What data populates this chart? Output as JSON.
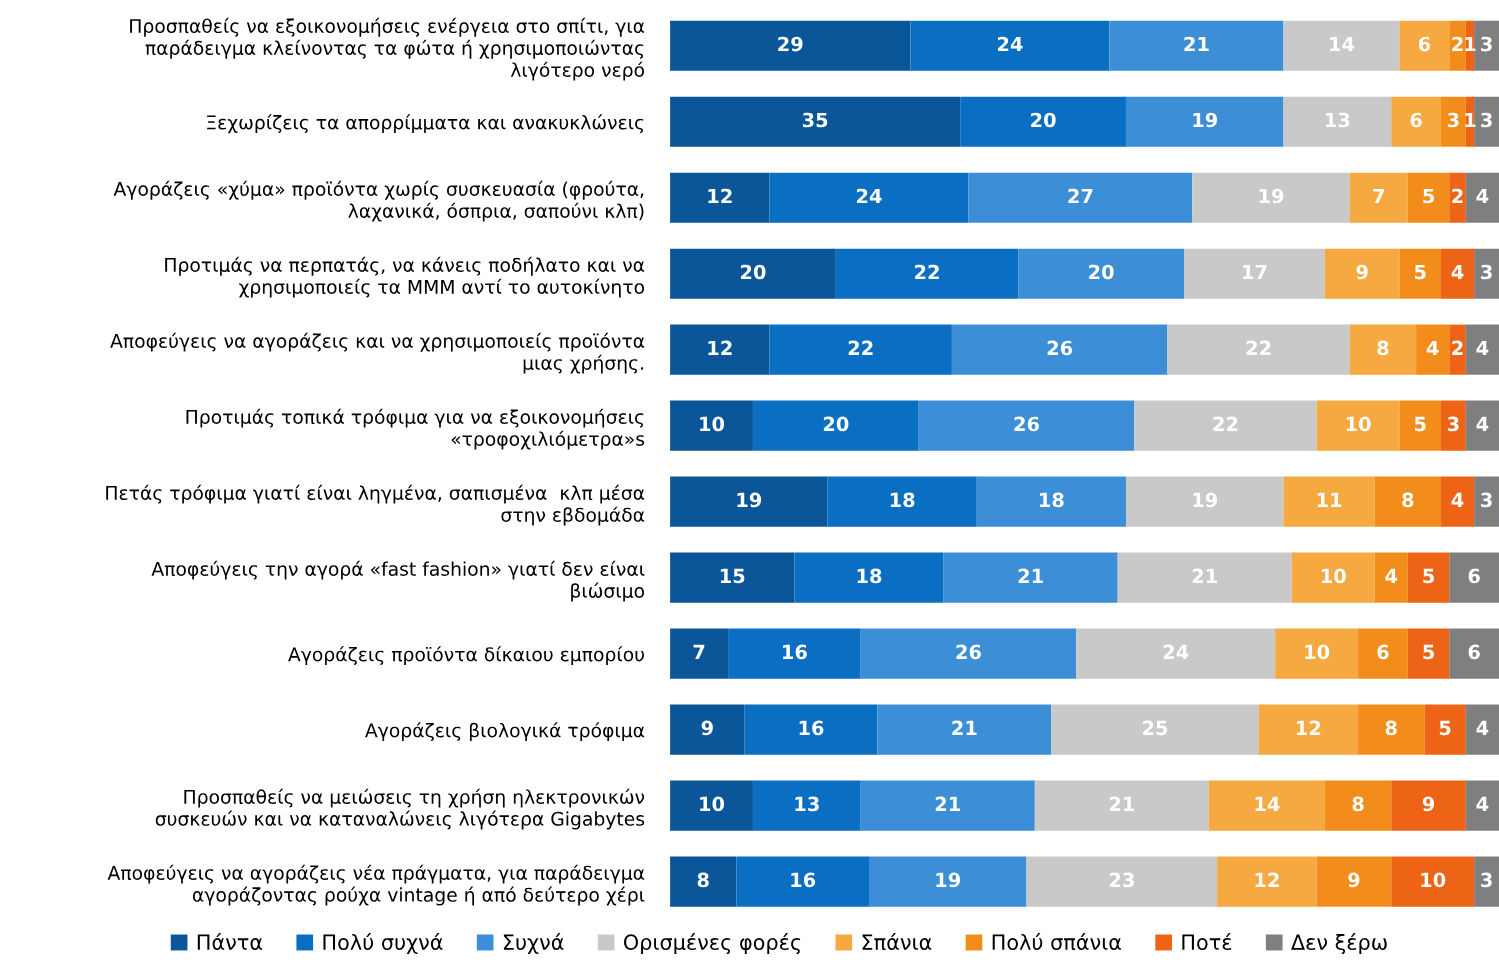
{
  "chart_data": {
    "type": "bar",
    "orientation": "horizontal",
    "stacked": true,
    "data_labels": true,
    "legend": "bottom",
    "categories": [
      "Προσπαθείς να εξοικονομήσεις ενέργεια στο σπίτι, για\nπαράδειγμα κλείνοντας τα φώτα ή χρησιμοποιώντας\nλιγότερο νερό",
      "Ξεχωρίζεις τα απορρίμματα και ανακυκλώνεις",
      "Αγοράζεις «χύμα» προϊόντα χωρίς συσκευασία (φρούτα,\nλαχανικά, όσπρια, σαπούνι κλπ)",
      "Προτιμάς να περπατάς, να κάνεις ποδήλατο και να\nχρησιμοποιείς τα ΜΜΜ αντί το αυτοκίνητο",
      "Αποφεύγεις να αγοράζεις και να χρησιμοποιείς προϊόντα\nμιας χρήσης.",
      "Προτιμάς τοπικά τρόφιμα για να εξοικονομήσεις\n«τροφοχιλιόμετρα»s",
      "Πετάς τρόφιμα γιατί είναι ληγμένα, σαπισμένα  κλπ μέσα\nστην εβδομάδα",
      "Αποφεύγεις την αγορά «fast fashion» γιατί δεν είναι\nβιώσιμο",
      "Αγοράζεις προϊόντα δίκαιου εμπορίου",
      "Αγοράζεις βιολογικά τρόφιμα",
      "Προσπαθείς να μειώσεις τη χρήση ηλεκτρονικών\nσυσκευών και να καταναλώνεις λιγότερα Gigabytes",
      "Αποφεύγεις να αγοράζεις νέα πράγματα, για παράδειγμα\nαγοράζοντας ρούχα vintage ή από δεύτερο χέρι"
    ],
    "series": [
      {
        "name": "Πάντα",
        "color": "#0b5699",
        "values": [
          29,
          35,
          12,
          20,
          12,
          10,
          19,
          15,
          7,
          9,
          10,
          8
        ]
      },
      {
        "name": "Πολύ συχνά",
        "color": "#0a6fc2",
        "values": [
          24,
          20,
          24,
          22,
          22,
          20,
          18,
          18,
          16,
          16,
          13,
          16
        ]
      },
      {
        "name": "Συχνά",
        "color": "#3c8fd6",
        "values": [
          21,
          19,
          27,
          20,
          26,
          26,
          18,
          21,
          26,
          21,
          21,
          19
        ]
      },
      {
        "name": "Ορισμένες φορές",
        "color": "#c9c9c9",
        "values": [
          14,
          13,
          19,
          17,
          22,
          22,
          19,
          21,
          24,
          25,
          21,
          23
        ]
      },
      {
        "name": "Σπάνια",
        "color": "#f6a940",
        "values": [
          6,
          6,
          7,
          9,
          8,
          10,
          11,
          10,
          10,
          12,
          14,
          12
        ]
      },
      {
        "name": "Πολύ σπάνια",
        "color": "#f28c1b",
        "values": [
          2,
          3,
          5,
          5,
          4,
          5,
          8,
          4,
          6,
          8,
          8,
          9
        ]
      },
      {
        "name": "Ποτέ",
        "color": "#ee6416",
        "values": [
          1,
          1,
          2,
          4,
          2,
          3,
          4,
          5,
          5,
          5,
          9,
          10
        ]
      },
      {
        "name": "Δεν ξέρω",
        "color": "#7f7f7f",
        "values": [
          3,
          3,
          4,
          3,
          4,
          4,
          3,
          6,
          6,
          4,
          4,
          3
        ]
      }
    ]
  }
}
